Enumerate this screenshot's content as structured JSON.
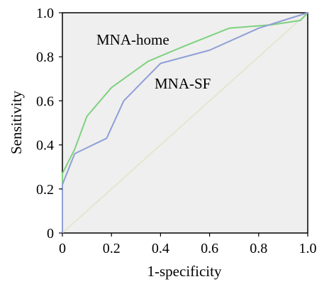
{
  "chart_data": {
    "type": "line",
    "xlabel": "1-specificity",
    "ylabel": "Sensitivity",
    "xlim": [
      0,
      1
    ],
    "ylim": [
      0,
      1
    ],
    "x_ticks": [
      "0",
      "0.2",
      "0.4",
      "0.6",
      "0.8",
      "1.0"
    ],
    "y_ticks": [
      "0",
      "0.2",
      "0.4",
      "0.6",
      "0.8",
      "1.0"
    ],
    "x_tick_values": [
      0,
      0.2,
      0.4,
      0.6,
      0.8,
      1.0
    ],
    "y_tick_values": [
      0,
      0.2,
      0.4,
      0.6,
      0.8,
      1.0
    ],
    "grid": false,
    "background": "#efefef",
    "series": [
      {
        "name": "MNA-home",
        "color": "#7fd17f",
        "x": [
          0,
          0,
          0.05,
          0.1,
          0.2,
          0.35,
          0.5,
          0.68,
          0.85,
          0.97,
          1.0
        ],
        "y": [
          0,
          0.27,
          0.38,
          0.53,
          0.66,
          0.78,
          0.85,
          0.93,
          0.945,
          0.965,
          1.0
        ]
      },
      {
        "name": "MNA-SF",
        "color": "#8f9fd6",
        "x": [
          0,
          0,
          0.05,
          0.18,
          0.25,
          0.4,
          0.6,
          0.8,
          1.0
        ],
        "y": [
          0,
          0.22,
          0.36,
          0.43,
          0.6,
          0.77,
          0.83,
          0.93,
          1.0
        ]
      },
      {
        "color": "#dde6c6",
        "x": [
          0,
          1
        ],
        "y": [
          0,
          1
        ]
      }
    ],
    "annotations": [
      {
        "text": "MNA-home",
        "series": 0
      },
      {
        "text": "MNA-SF",
        "series": 1
      }
    ]
  }
}
